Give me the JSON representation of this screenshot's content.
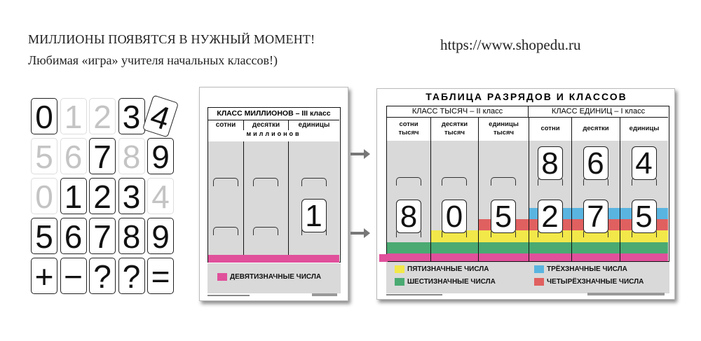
{
  "header": {
    "headline": "МИЛЛИОНЫ ПОЯВЯТСЯ В НУЖНЫЙ МОМЕНТ!",
    "subline": "Любимая «игра» учителя начальных классов!)",
    "url": "https://www.shopedu.ru"
  },
  "cards": [
    [
      "0",
      "1",
      "2",
      "3",
      "4"
    ],
    [
      "5",
      "6",
      "7",
      "8",
      "9"
    ],
    [
      "0",
      "1",
      "2",
      "3",
      "4"
    ],
    [
      "5",
      "6",
      "7",
      "8",
      "9"
    ],
    [
      "+",
      "−",
      "?",
      "?",
      "="
    ]
  ],
  "cards_faded": [
    [
      false,
      true,
      true,
      false,
      false
    ],
    [
      true,
      true,
      false,
      true,
      false
    ],
    [
      true,
      false,
      false,
      false,
      true
    ],
    [
      false,
      false,
      false,
      false,
      false
    ],
    [
      false,
      false,
      false,
      false,
      false
    ]
  ],
  "poster_millions": {
    "class_title": "КЛАСС  МИЛЛИОНОВ – III класс",
    "columns": [
      "сотни",
      "десятки",
      "единицы"
    ],
    "subtitle": "миллионов",
    "digits": [
      "",
      "",
      "1"
    ],
    "legend": [
      {
        "label": "ДЕВЯТИЗНАЧНЫЕ ЧИСЛА",
        "color": "#e0509b"
      }
    ]
  },
  "poster_main": {
    "title": "ТАБЛИЦА РАЗРЯДОВ И КЛАССОВ",
    "class_thousands": "КЛАСС  ТЫСЯЧ  – II класс",
    "class_units": "КЛАСС  ЕДИНИЦ  – I класс",
    "columns": [
      [
        "сотни",
        "тысяч"
      ],
      [
        "десятки",
        "тысяч"
      ],
      [
        "единицы",
        "тысяч"
      ],
      [
        "сотни",
        ""
      ],
      [
        "десятки",
        ""
      ],
      [
        "единицы",
        ""
      ]
    ],
    "upper_digits": [
      "",
      "",
      "",
      "8",
      "6",
      "4"
    ],
    "lower_digits": [
      "8",
      "0",
      "5",
      "2",
      "7",
      "5"
    ],
    "legend": [
      {
        "label": "ПЯТИЗНАЧНЫЕ ЧИСЛА",
        "color": "#f2e84a"
      },
      {
        "label": "ШЕСТИЗНАЧНЫЕ ЧИСЛА",
        "color": "#4aaa72"
      },
      {
        "label": "ТРЁХЗНАЧНЫЕ ЧИСЛА",
        "color": "#5ab4e0"
      },
      {
        "label": "ЧЕТЫРЁХЗНАЧНЫЕ ЧИСЛА",
        "color": "#e06060"
      }
    ],
    "band_colors": {
      "nine": "#e0509b",
      "six": "#4aaa72",
      "five": "#f2e84a",
      "four": "#e06060",
      "three": "#5ab4e0"
    }
  }
}
